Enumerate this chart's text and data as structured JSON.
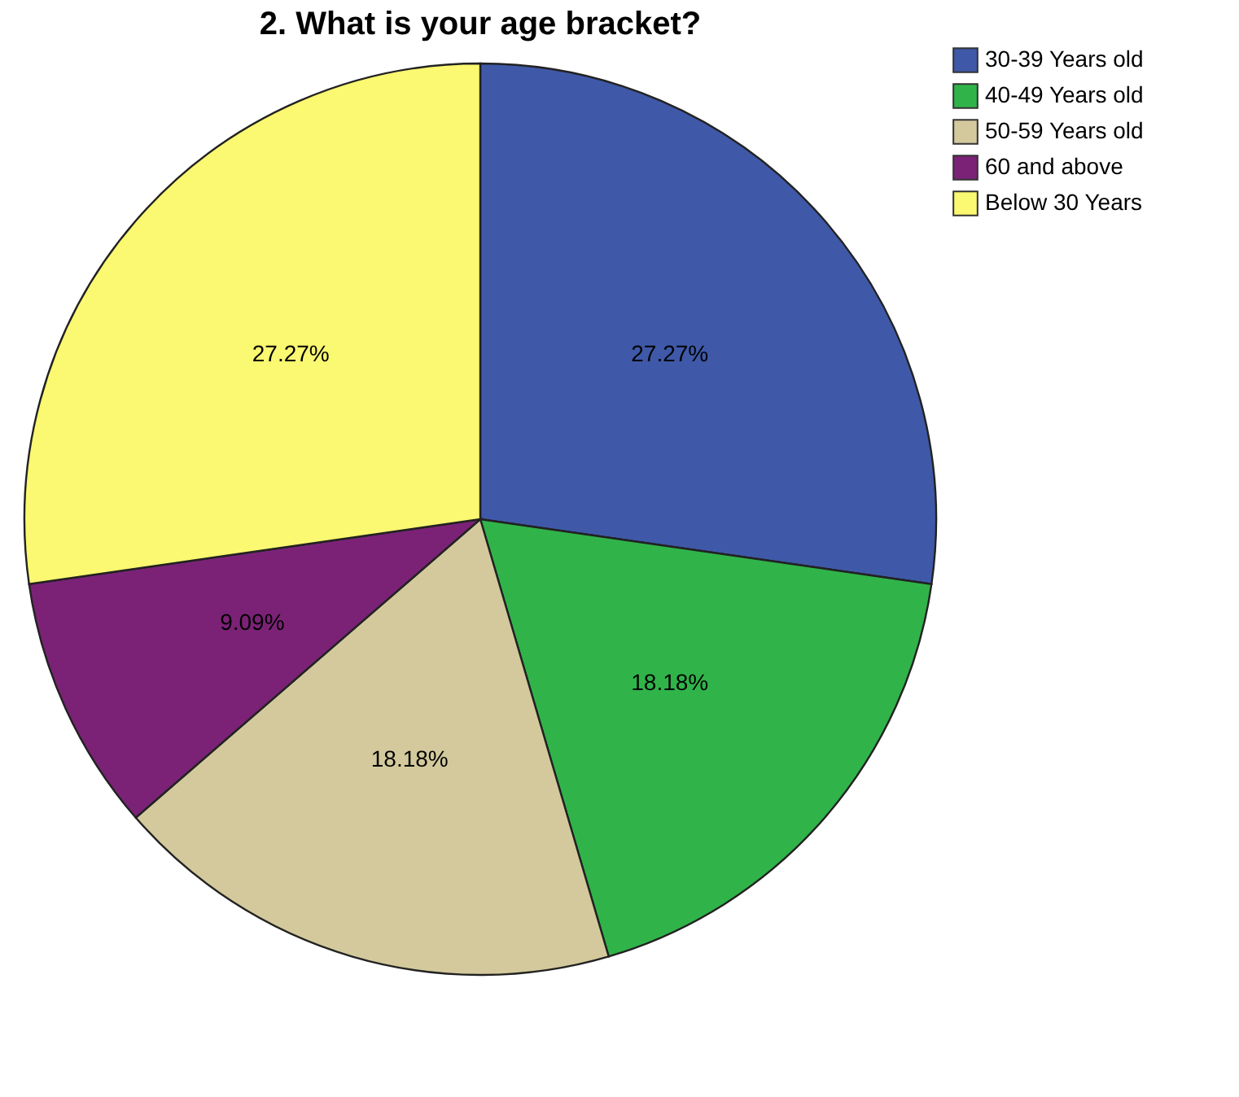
{
  "chart_data": {
    "type": "pie",
    "title": "2. What is your age bracket?",
    "categories": [
      "30-39 Years old",
      "40-49 Years old",
      "50-59 Years old",
      "60 and above",
      "Below 30 Years"
    ],
    "values": [
      27.27,
      18.18,
      18.18,
      9.09,
      27.27
    ],
    "colors": [
      "#3f59a8",
      "#30b44a",
      "#d3c99c",
      "#7b2277",
      "#fbf871"
    ],
    "value_labels": [
      "27.27%",
      "18.18%",
      "18.18%",
      "9.09%",
      "27.27%"
    ],
    "legend": "top right"
  }
}
